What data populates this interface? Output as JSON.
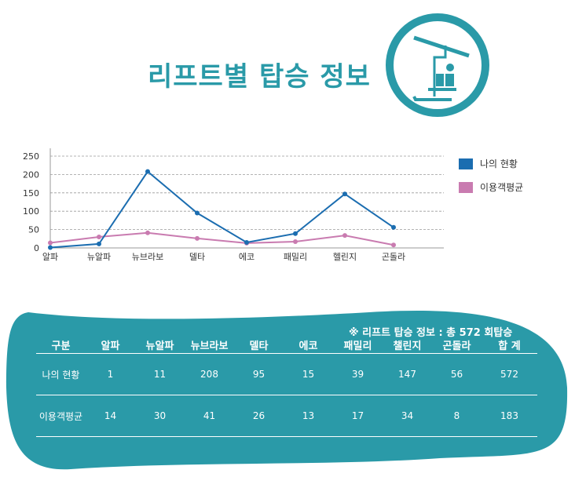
{
  "title": "리프트별 탑승 정보",
  "colors": {
    "accent": "#2a9aa8",
    "mine": "#1b6db0",
    "avg": "#c97bb0",
    "panel": "#2a9aa8"
  },
  "legend": {
    "mine": "나의 현황",
    "avg": "이용객평균"
  },
  "chart_data": {
    "type": "line",
    "categories": [
      "알파",
      "뉴알파",
      "뉴브라보",
      "델타",
      "에코",
      "패밀리",
      "헬린지",
      "곤돌라"
    ],
    "ylim": [
      0,
      250
    ],
    "yticks": [
      0,
      50,
      100,
      150,
      200,
      250
    ],
    "grid": true,
    "legend_position": "right",
    "series": [
      {
        "name": "나의 현황",
        "values": [
          1,
          11,
          208,
          95,
          15,
          39,
          147,
          56
        ]
      },
      {
        "name": "이용객평균",
        "values": [
          14,
          30,
          41,
          26,
          13,
          17,
          34,
          8
        ]
      }
    ]
  },
  "table": {
    "note": "※ 리프트 탑승 정보 : 총 572 회탑승",
    "headers": [
      "구분",
      "알파",
      "뉴알파",
      "뉴브라보",
      "델타",
      "에코",
      "패밀리",
      "챌린지",
      "곤돌라",
      "합 계"
    ],
    "rows": [
      [
        "나의 현황",
        "1",
        "11",
        "208",
        "95",
        "15",
        "39",
        "147",
        "56",
        "572"
      ],
      [
        "이용객평균",
        "14",
        "30",
        "41",
        "26",
        "13",
        "17",
        "34",
        "8",
        "183"
      ]
    ]
  }
}
